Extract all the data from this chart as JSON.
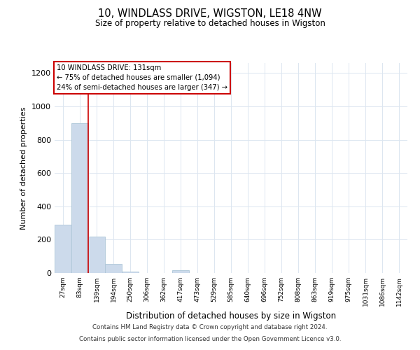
{
  "title1": "10, WINDLASS DRIVE, WIGSTON, LE18 4NW",
  "title2": "Size of property relative to detached houses in Wigston",
  "xlabel": "Distribution of detached houses by size in Wigston",
  "ylabel": "Number of detached properties",
  "bin_labels": [
    "27sqm",
    "83sqm",
    "139sqm",
    "194sqm",
    "250sqm",
    "306sqm",
    "362sqm",
    "417sqm",
    "473sqm",
    "529sqm",
    "585sqm",
    "640sqm",
    "696sqm",
    "752sqm",
    "808sqm",
    "863sqm",
    "919sqm",
    "975sqm",
    "1031sqm",
    "1086sqm",
    "1142sqm"
  ],
  "bar_heights": [
    290,
    900,
    220,
    55,
    10,
    0,
    0,
    15,
    0,
    0,
    0,
    0,
    0,
    0,
    0,
    0,
    0,
    0,
    0,
    0,
    0
  ],
  "bar_color": "#ccdaeb",
  "bar_edge_color": "#aec6d8",
  "grid_color": "#dce6f0",
  "annotation_box_text": "10 WINDLASS DRIVE: 131sqm\n← 75% of detached houses are smaller (1,094)\n24% of semi-detached houses are larger (347) →",
  "annotation_box_color": "#ffffff",
  "annotation_box_edge_color": "#cc0000",
  "vline_color": "#cc0000",
  "ylim": [
    0,
    1260
  ],
  "yticks": [
    0,
    200,
    400,
    600,
    800,
    1000,
    1200
  ],
  "footnote1": "Contains HM Land Registry data © Crown copyright and database right 2024.",
  "footnote2": "Contains public sector information licensed under the Open Government Licence v3.0.",
  "figsize": [
    6.0,
    5.0
  ],
  "dpi": 100
}
